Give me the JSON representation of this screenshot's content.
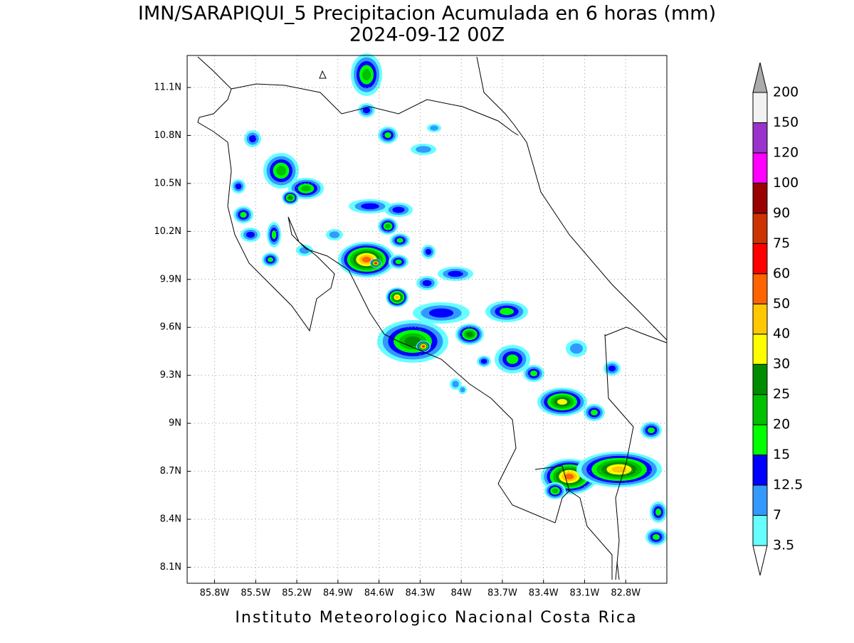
{
  "title": "IMN/SARAPIQUI_5 Precipitacion Acumulada en 6 horas (mm)",
  "subtitle": "2024-09-12 00Z",
  "footer": "Instituto Meteorologico Nacional Costa Rica",
  "map": {
    "lonlim": [
      -86.0,
      -82.5
    ],
    "latlim": [
      8.0,
      11.3
    ],
    "lon_ticks": [
      {
        "value": -85.8,
        "label": "85.8W"
      },
      {
        "value": -85.5,
        "label": "85.5W"
      },
      {
        "value": -85.2,
        "label": "85.2W"
      },
      {
        "value": -84.9,
        "label": "84.9W"
      },
      {
        "value": -84.6,
        "label": "84.6W"
      },
      {
        "value": -84.3,
        "label": "84.3W"
      },
      {
        "value": -84.0,
        "label": "84W"
      },
      {
        "value": -83.7,
        "label": "83.7W"
      },
      {
        "value": -83.4,
        "label": "83.4W"
      },
      {
        "value": -83.1,
        "label": "83.1W"
      },
      {
        "value": -82.8,
        "label": "82.8W"
      }
    ],
    "lat_ticks": [
      {
        "value": 11.1,
        "label": "11.1N"
      },
      {
        "value": 10.8,
        "label": "10.8N"
      },
      {
        "value": 10.5,
        "label": "10.5N"
      },
      {
        "value": 10.2,
        "label": "10.2N"
      },
      {
        "value": 9.9,
        "label": "9.9N"
      },
      {
        "value": 9.6,
        "label": "9.6N"
      },
      {
        "value": 9.3,
        "label": "9.3N"
      },
      {
        "value": 9.0,
        "label": "9N"
      },
      {
        "value": 8.7,
        "label": "8.7N"
      },
      {
        "value": 8.4,
        "label": "8.4N"
      },
      {
        "value": 8.1,
        "label": "8.1N"
      }
    ],
    "grid": true
  },
  "colorbar": {
    "levels": [
      3.5,
      7,
      12.5,
      15,
      20,
      25,
      30,
      40,
      50,
      60,
      75,
      90,
      100,
      120,
      150,
      200
    ],
    "colors": [
      "#66ffff",
      "#3399ff",
      "#0000ff",
      "#00ff00",
      "#00c000",
      "#008c00",
      "#ffff00",
      "#ffc800",
      "#ff6400",
      "#ff0000",
      "#cc3300",
      "#990000",
      "#ff00ff",
      "#9933cc",
      "#f2f2f2"
    ],
    "under_color": "#ffffff",
    "over_color": "#aaaaaa"
  }
}
